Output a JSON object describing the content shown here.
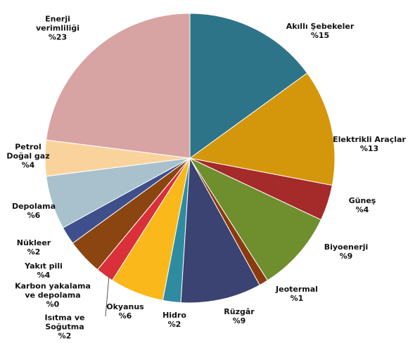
{
  "chart_data": {
    "type": "pie",
    "categories": [
      "Akıllı Şebekeler",
      "Elektrikli Araçlar",
      "Güneş",
      "Biyoenerji",
      "Jeotermal",
      "Rüzgâr",
      "Hidro",
      "Okyanus",
      "Isıtma ve Soğutma",
      "Karbon yakalama ve depolama",
      "Yakıt pili",
      "Nükleer",
      "Depolama",
      "Petrol Doğal gaz",
      "Enerji verimliliği"
    ],
    "values": [
      15,
      13,
      4,
      9,
      1,
      9,
      2,
      6,
      2,
      0,
      4,
      2,
      6,
      4,
      23
    ],
    "value_labels": [
      "%15",
      "%13",
      "%4",
      "%9",
      "%1",
      "%9",
      "%2",
      "%6",
      "%2",
      "%0",
      "%4",
      "%2",
      "%6",
      "%4",
      "%23"
    ],
    "colors": [
      "#2e7489",
      "#d4960a",
      "#a52a2a",
      "#6f8f2e",
      "#8b3a0e",
      "#3b4372",
      "#2f8ca0",
      "#fbb81b",
      "#d9303a",
      "#7a7a7a",
      "#8b4510",
      "#3f4f8c",
      "#a9c1cc",
      "#fad39c",
      "#d8a3a3"
    ]
  }
}
